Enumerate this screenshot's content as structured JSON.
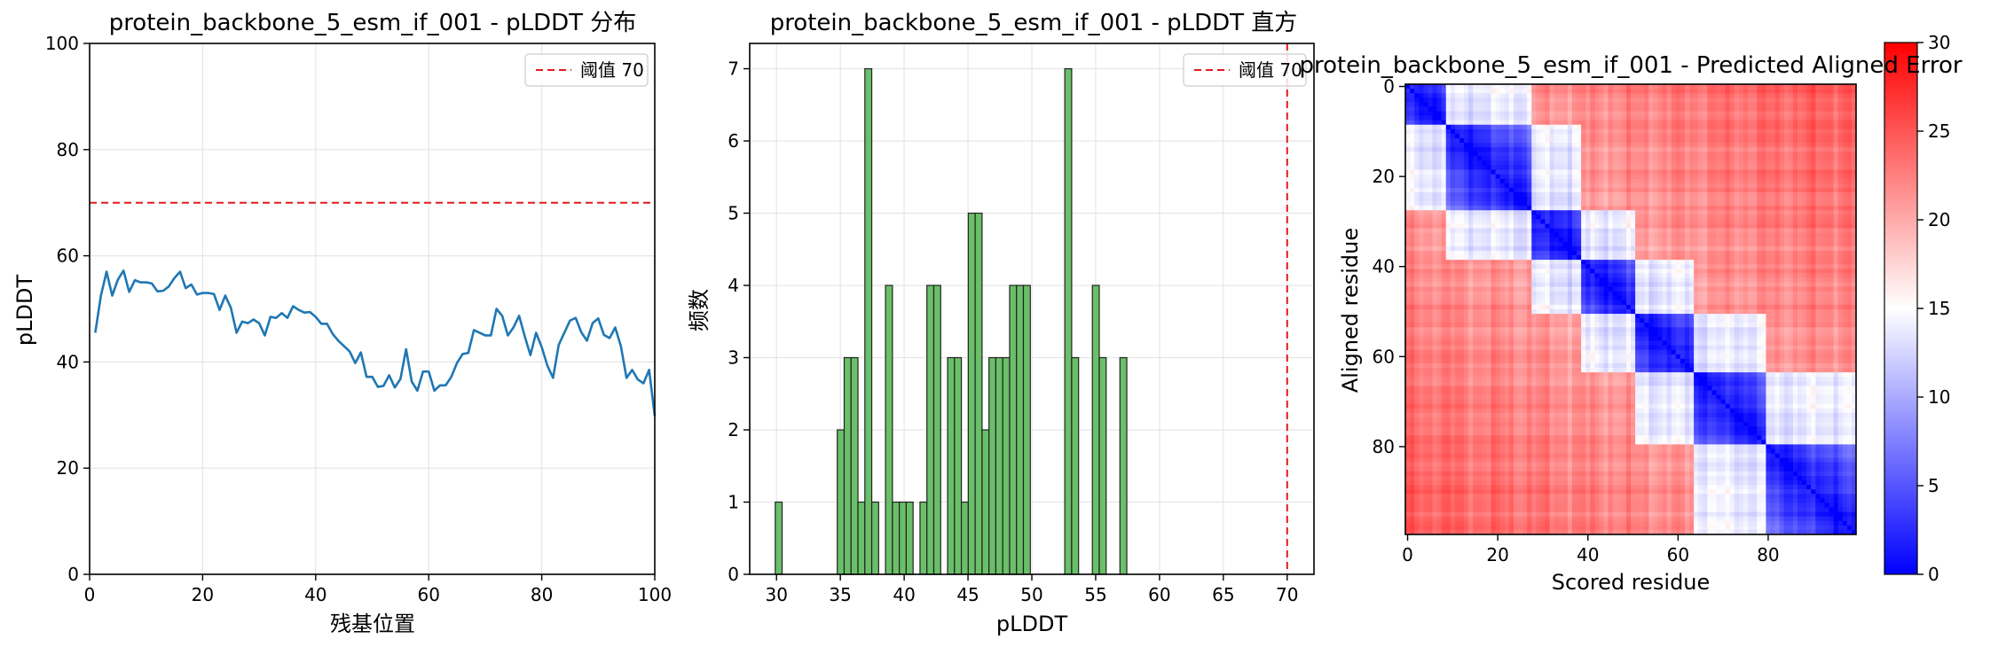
{
  "chart_data": [
    {
      "type": "line",
      "title": "protein_backbone_5_esm_if_001 - pLDDT 分布",
      "xlabel": "残基位置",
      "ylabel": "pLDDT",
      "xlim": [
        0,
        100
      ],
      "ylim": [
        0,
        100
      ],
      "xticks": [
        "0",
        "20",
        "40",
        "60",
        "80",
        "100"
      ],
      "yticks": [
        "0",
        "20",
        "40",
        "60",
        "80",
        "100"
      ],
      "grid": true,
      "legend": "top-right",
      "threshold": {
        "value": 70,
        "label": "阈值 70",
        "color": "#e41a1c"
      },
      "series": [
        {
          "color": "#1f77b4",
          "x": [
            1,
            2,
            3,
            4,
            5,
            6,
            7,
            8,
            9,
            10,
            11,
            12,
            13,
            14,
            15,
            16,
            17,
            18,
            19,
            20,
            21,
            22,
            23,
            24,
            25,
            26,
            27,
            28,
            29,
            30,
            31,
            32,
            33,
            34,
            35,
            36,
            37,
            38,
            39,
            40,
            41,
            42,
            43,
            44,
            45,
            46,
            47,
            48,
            49,
            50,
            51,
            52,
            53,
            54,
            55,
            56,
            57,
            58,
            59,
            60,
            61,
            62,
            63,
            64,
            65,
            66,
            67,
            68,
            69,
            70,
            71,
            72,
            73,
            74,
            75,
            76,
            77,
            78,
            79,
            80,
            81,
            82,
            83,
            84,
            85,
            86,
            87,
            88,
            89,
            90,
            91,
            92,
            93,
            94,
            95,
            96,
            97,
            98,
            99,
            100
          ],
          "y": [
            45.5,
            52.5,
            57,
            52.5,
            55.5,
            57.2,
            53.2,
            55.4,
            55,
            55,
            54.8,
            53.3,
            53.4,
            54.2,
            55.8,
            57,
            53.9,
            54.6,
            52.7,
            53,
            53,
            52.8,
            49.8,
            52.5,
            50.2,
            45.5,
            47.6,
            47.3,
            48,
            47.3,
            45,
            48.5,
            48.3,
            49.2,
            48.3,
            50.5,
            49.8,
            49.3,
            49.4,
            48.5,
            47.2,
            47.2,
            45.3,
            44,
            43,
            42,
            39.8,
            41.8,
            37.2,
            37.2,
            35.3,
            35.5,
            37.5,
            35.2,
            36.8,
            42.4,
            36.3,
            34.6,
            38.2,
            38.2,
            34.6,
            35.6,
            35.6,
            37.2,
            39.8,
            41.5,
            41.7,
            46,
            45.5,
            45,
            45,
            50,
            48.7,
            45,
            46.5,
            48.7,
            44.8,
            41.3,
            45.5,
            42.8,
            39.3,
            37,
            43.2,
            45.5,
            47.8,
            48.3,
            45.6,
            44,
            47.3,
            48.2,
            45.1,
            44.5,
            46.5,
            43,
            37,
            38.5,
            36.7,
            36,
            38.5,
            29.8
          ]
        }
      ]
    },
    {
      "type": "bar",
      "title": "protein_backbone_5_esm_if_001 - pLDDT 直方",
      "xlabel": "pLDDT",
      "ylabel": "频数",
      "xlim": [
        27.9,
        72.1
      ],
      "ylim": [
        0,
        7.35
      ],
      "xticks": [
        "30",
        "35",
        "40",
        "45",
        "50",
        "55",
        "60",
        "65",
        "70"
      ],
      "yticks": [
        "0",
        "1",
        "2",
        "3",
        "4",
        "5",
        "6",
        "7"
      ],
      "grid": true,
      "legend": "top-right",
      "threshold": {
        "value": 70,
        "label": "阈值 70",
        "color": "#e41a1c"
      },
      "bar_color": "#6abf69",
      "bin_start": 29.9,
      "bin_width": 0.54,
      "values": [
        1,
        0,
        0,
        0,
        0,
        0,
        0,
        0,
        0,
        2,
        3,
        3,
        1,
        7,
        1,
        0,
        4,
        1,
        1,
        1,
        0,
        1,
        4,
        4,
        0,
        3,
        3,
        1,
        5,
        5,
        2,
        3,
        3,
        3,
        4,
        4,
        4,
        0,
        0,
        0,
        0,
        0,
        7,
        3,
        0,
        0,
        4,
        3,
        0,
        0,
        3
      ]
    },
    {
      "type": "heatmap",
      "title": "protein_backbone_5_esm_if_001 - Predicted Aligned Error",
      "xlabel": "Scored residue",
      "ylabel": "Aligned residue",
      "xticks": [
        "0",
        "20",
        "40",
        "60",
        "80"
      ],
      "yticks": [
        "0",
        "20",
        "40",
        "60",
        "80"
      ],
      "colorbar_ticks": [
        "0",
        "5",
        "10",
        "15",
        "20",
        "25",
        "30"
      ],
      "colormap": "bwr",
      "vmin": 0,
      "vmax": 30,
      "size": 100
    }
  ]
}
